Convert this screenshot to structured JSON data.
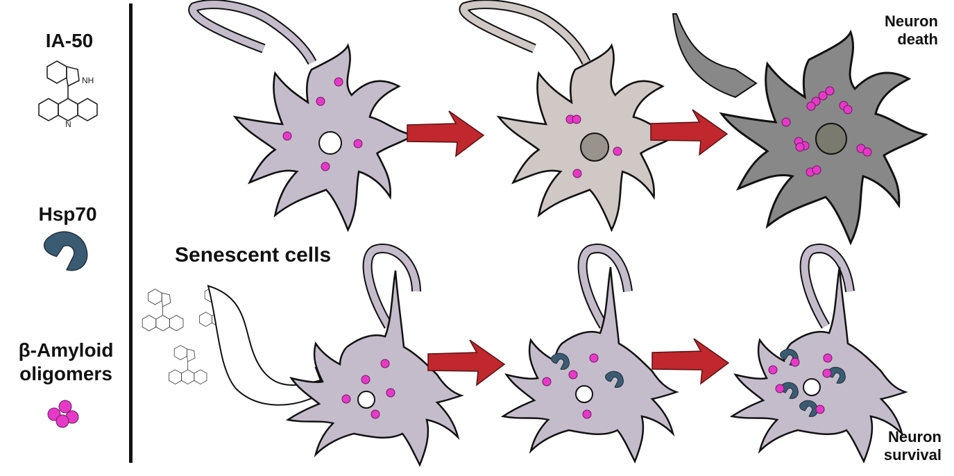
{
  "legend": {
    "ia50_label": "IA-50",
    "ia50_nh": "NH",
    "ia50_n": "N",
    "hsp70_label": "Hsp70",
    "amyloid_label_line1": "β-Amyloid",
    "amyloid_label_line2": "oligomers"
  },
  "annotations": {
    "senescent": "Senescent cells",
    "death_line1": "Neuron",
    "death_line2": "death",
    "survival_line1": "Neuron",
    "survival_line2": "survival"
  },
  "colors": {
    "cell_healthy": "#c5bccb",
    "cell_stressed": "#cfc8c4",
    "cell_dead": "#888888",
    "amyloid": "#e639c8",
    "hsp70": "#3b5b72",
    "arrow": "#c0282e",
    "outline": "#111111"
  }
}
